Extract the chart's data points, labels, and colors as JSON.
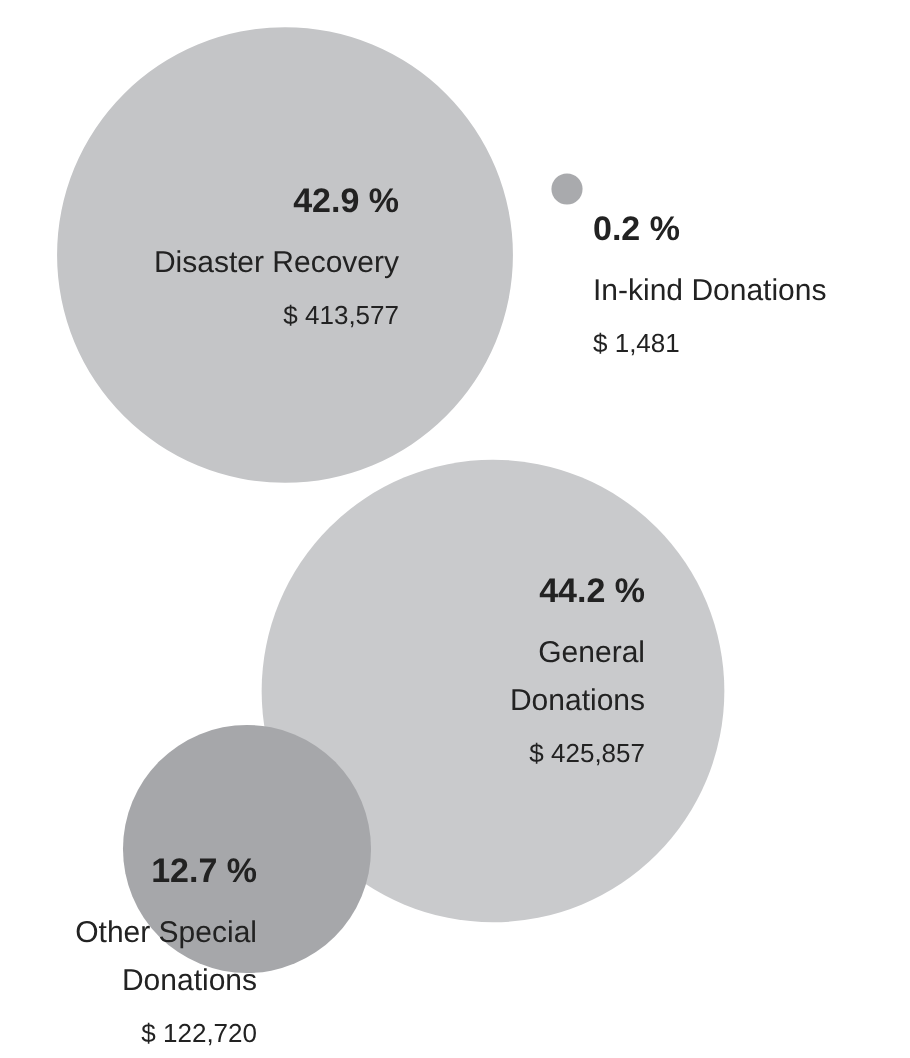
{
  "chart_data": {
    "type": "other",
    "categories": [
      "Disaster Recovery",
      "In-kind Donations",
      "General\nDonations",
      "Other Special\nDonations"
    ],
    "values": [
      42.9,
      0.2,
      44.2,
      12.7
    ],
    "value_labels": [
      "42.9 %",
      "0.2 %",
      "44.2 %",
      "12.7 %"
    ],
    "colors": [
      "#c4c5c7",
      "#a9aaad",
      "#c9cacc",
      "#a6a7aa"
    ],
    "annotations": [
      "$ 413,577",
      "$ 1,481",
      "$ 425,857",
      "$ 122,720"
    ]
  }
}
